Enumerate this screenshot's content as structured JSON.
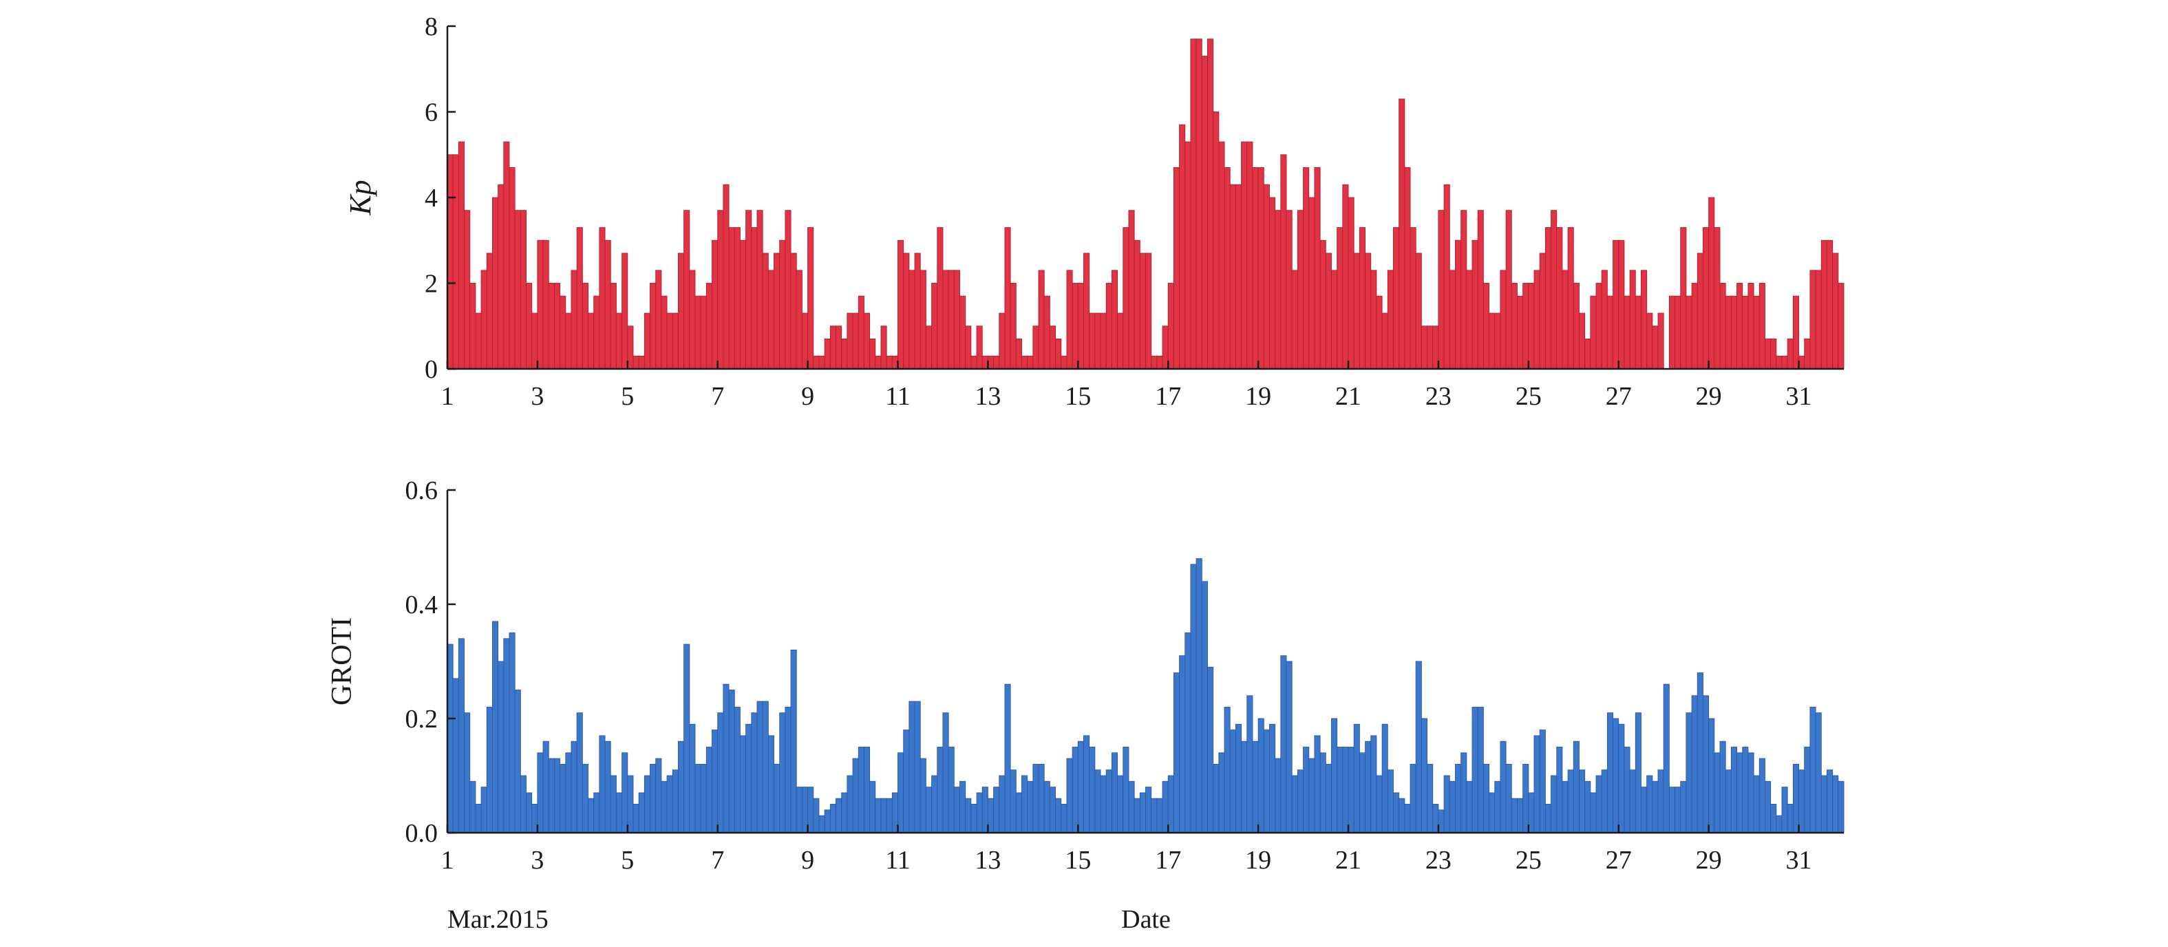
{
  "figure": {
    "month_label": "Mar.2015",
    "xlabel": "Date"
  },
  "chart_data": [
    {
      "type": "bar",
      "title": "",
      "xlabel": "",
      "ylabel": "Kp",
      "ylim": [
        0,
        8
      ],
      "yticks": [
        0,
        2,
        4,
        6,
        8
      ],
      "xlim": [
        1,
        32
      ],
      "xticks": [
        1,
        3,
        5,
        7,
        9,
        11,
        13,
        15,
        17,
        19,
        21,
        23,
        25,
        27,
        29,
        31
      ],
      "grid": false,
      "legend": "none",
      "bar_color": "#e03444",
      "bar_edge_color": "#b31d2e",
      "series": [
        {
          "values": [
            5.0,
            5.0,
            5.3,
            3.7,
            2.0,
            1.3,
            2.3,
            2.7,
            4.0,
            4.3,
            5.3,
            4.7,
            3.7,
            3.7,
            2.0,
            1.3,
            3.0,
            3.0,
            2.0,
            2.0,
            1.7,
            1.3,
            2.3,
            3.3,
            2.0,
            1.3,
            1.7,
            3.3,
            3.0,
            2.0,
            1.3,
            2.7,
            1.0,
            0.3,
            0.3,
            1.3,
            2.0,
            2.3,
            1.7,
            1.3,
            1.3,
            2.7,
            3.7,
            2.3,
            1.7,
            1.7,
            2.0,
            3.0,
            3.7,
            4.3,
            3.3,
            3.3,
            3.0,
            3.7,
            3.3,
            3.7,
            2.7,
            2.3,
            2.7,
            3.0,
            3.7,
            2.7,
            2.3,
            1.3,
            3.3,
            0.3,
            0.3,
            0.7,
            1.0,
            1.0,
            0.7,
            1.3,
            1.3,
            1.7,
            1.3,
            0.7,
            0.3,
            1.0,
            0.3,
            0.3,
            3.0,
            2.7,
            2.3,
            2.7,
            2.3,
            1.0,
            2.0,
            3.3,
            2.3,
            2.3,
            2.3,
            1.7,
            1.0,
            0.3,
            1.0,
            0.3,
            0.3,
            0.3,
            1.3,
            3.3,
            2.0,
            0.7,
            0.3,
            0.3,
            1.0,
            2.3,
            1.7,
            1.0,
            0.7,
            0.3,
            2.3,
            2.0,
            2.0,
            2.7,
            1.3,
            1.3,
            1.3,
            2.0,
            2.3,
            1.3,
            3.3,
            3.7,
            3.0,
            2.7,
            2.7,
            0.3,
            0.3,
            1.0,
            2.0,
            4.7,
            5.7,
            5.3,
            7.7,
            7.7,
            7.3,
            7.7,
            6.0,
            5.3,
            4.7,
            4.3,
            4.3,
            5.3,
            5.3,
            4.7,
            4.7,
            4.3,
            4.0,
            3.7,
            5.0,
            3.7,
            2.3,
            3.7,
            4.7,
            4.0,
            4.7,
            3.0,
            2.7,
            2.3,
            3.3,
            4.3,
            4.0,
            2.7,
            3.3,
            2.7,
            2.3,
            1.7,
            1.3,
            2.3,
            3.3,
            6.3,
            4.7,
            3.3,
            2.7,
            1.0,
            1.0,
            1.0,
            3.7,
            4.3,
            2.3,
            3.0,
            3.7,
            2.3,
            3.0,
            3.7,
            2.0,
            1.3,
            1.3,
            2.3,
            3.7,
            2.0,
            1.7,
            2.0,
            2.0,
            2.3,
            2.7,
            3.3,
            3.7,
            3.3,
            2.3,
            3.3,
            2.0,
            1.3,
            0.7,
            1.7,
            2.0,
            2.3,
            1.7,
            3.0,
            3.0,
            1.7,
            2.3,
            1.7,
            2.3,
            1.3,
            1.0,
            1.3,
            0.0,
            1.7,
            1.7,
            3.3,
            1.7,
            2.0,
            2.7,
            3.3,
            4.0,
            3.3,
            2.0,
            1.7,
            1.7,
            2.0,
            1.7,
            2.0,
            1.7,
            2.0,
            0.7,
            0.7,
            0.3,
            0.3,
            0.7,
            1.7,
            0.3,
            0.7,
            2.3,
            2.3,
            3.0,
            3.0,
            2.7,
            2.0
          ]
        }
      ]
    },
    {
      "type": "bar",
      "title": "",
      "xlabel": "Date",
      "ylabel": "GROTI",
      "ylim": [
        0,
        0.6
      ],
      "yticks": [
        0,
        0.2,
        0.4,
        0.6
      ],
      "xlim": [
        1,
        32
      ],
      "xticks": [
        1,
        3,
        5,
        7,
        9,
        11,
        13,
        15,
        17,
        19,
        21,
        23,
        25,
        27,
        29,
        31
      ],
      "grid": false,
      "legend": "none",
      "bar_color": "#3b78cc",
      "bar_edge_color": "#2f56a8",
      "series": [
        {
          "values": [
            0.33,
            0.27,
            0.34,
            0.21,
            0.09,
            0.05,
            0.08,
            0.22,
            0.37,
            0.3,
            0.34,
            0.35,
            0.25,
            0.1,
            0.07,
            0.05,
            0.14,
            0.16,
            0.13,
            0.13,
            0.12,
            0.14,
            0.16,
            0.21,
            0.12,
            0.06,
            0.07,
            0.17,
            0.16,
            0.1,
            0.07,
            0.14,
            0.1,
            0.05,
            0.07,
            0.1,
            0.12,
            0.13,
            0.09,
            0.1,
            0.11,
            0.16,
            0.33,
            0.19,
            0.12,
            0.12,
            0.15,
            0.18,
            0.21,
            0.26,
            0.25,
            0.22,
            0.17,
            0.19,
            0.21,
            0.23,
            0.23,
            0.17,
            0.12,
            0.21,
            0.22,
            0.32,
            0.08,
            0.08,
            0.08,
            0.06,
            0.03,
            0.04,
            0.05,
            0.06,
            0.07,
            0.1,
            0.13,
            0.15,
            0.15,
            0.09,
            0.06,
            0.06,
            0.06,
            0.07,
            0.14,
            0.18,
            0.23,
            0.23,
            0.13,
            0.08,
            0.1,
            0.15,
            0.21,
            0.15,
            0.08,
            0.09,
            0.06,
            0.05,
            0.07,
            0.08,
            0.06,
            0.08,
            0.1,
            0.26,
            0.11,
            0.07,
            0.1,
            0.09,
            0.12,
            0.12,
            0.09,
            0.08,
            0.06,
            0.05,
            0.13,
            0.15,
            0.16,
            0.17,
            0.15,
            0.11,
            0.1,
            0.11,
            0.14,
            0.1,
            0.15,
            0.09,
            0.06,
            0.07,
            0.08,
            0.06,
            0.06,
            0.09,
            0.1,
            0.28,
            0.31,
            0.35,
            0.47,
            0.48,
            0.44,
            0.29,
            0.12,
            0.14,
            0.22,
            0.18,
            0.19,
            0.16,
            0.24,
            0.16,
            0.2,
            0.18,
            0.19,
            0.13,
            0.31,
            0.3,
            0.1,
            0.11,
            0.15,
            0.13,
            0.17,
            0.14,
            0.12,
            0.2,
            0.15,
            0.15,
            0.15,
            0.19,
            0.14,
            0.16,
            0.17,
            0.1,
            0.19,
            0.11,
            0.07,
            0.06,
            0.05,
            0.12,
            0.3,
            0.2,
            0.12,
            0.05,
            0.04,
            0.1,
            0.09,
            0.12,
            0.14,
            0.09,
            0.22,
            0.22,
            0.12,
            0.07,
            0.09,
            0.16,
            0.12,
            0.06,
            0.06,
            0.12,
            0.07,
            0.17,
            0.18,
            0.05,
            0.1,
            0.15,
            0.09,
            0.11,
            0.16,
            0.11,
            0.09,
            0.07,
            0.1,
            0.11,
            0.21,
            0.2,
            0.19,
            0.15,
            0.11,
            0.21,
            0.08,
            0.1,
            0.09,
            0.11,
            0.26,
            0.08,
            0.08,
            0.09,
            0.21,
            0.24,
            0.28,
            0.24,
            0.2,
            0.14,
            0.16,
            0.11,
            0.15,
            0.14,
            0.15,
            0.14,
            0.1,
            0.13,
            0.09,
            0.05,
            0.03,
            0.08,
            0.05,
            0.12,
            0.11,
            0.15,
            0.22,
            0.21,
            0.1,
            0.11,
            0.1,
            0.09
          ]
        }
      ]
    }
  ]
}
